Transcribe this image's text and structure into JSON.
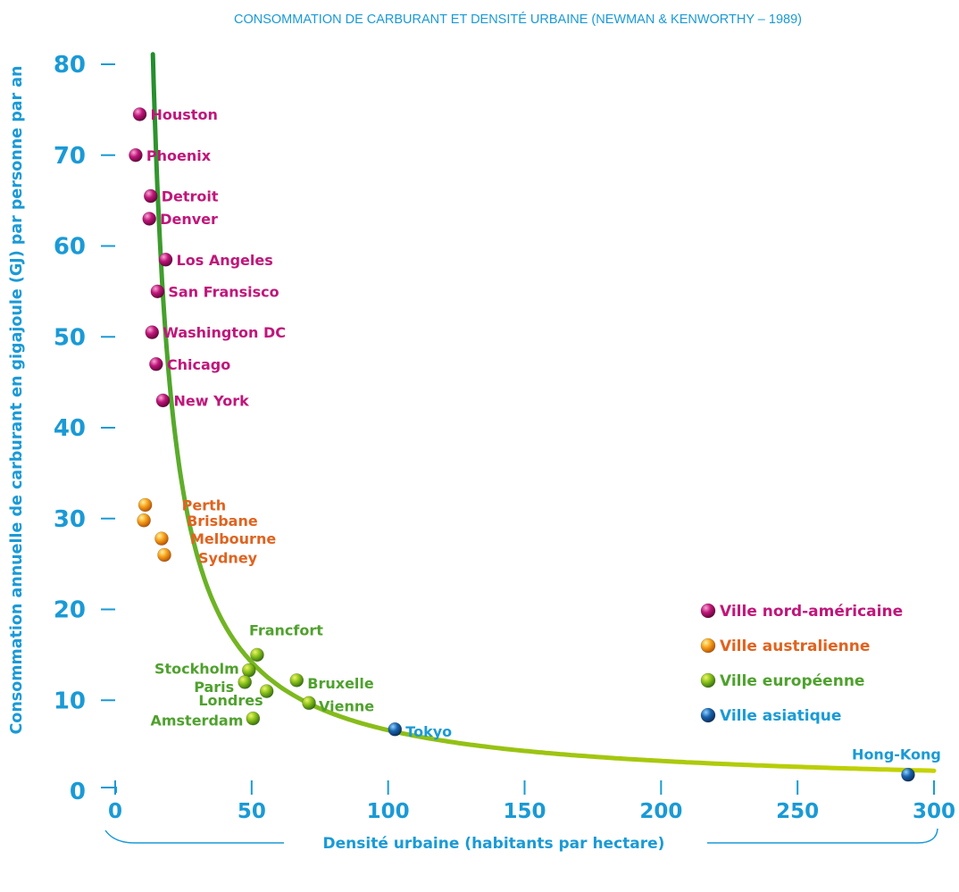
{
  "chart_data": {
    "type": "scatter",
    "title": "CONSOMMATION DE CARBURANT ET DENSITÉ URBAINE (NEWMAN & KENWORTHY – 1989)",
    "xlabel": "Densité urbaine (habitants par hectare)",
    "ylabel": "Consommation annuelle de carburant en gigajoule (GJ) par personne par an",
    "xlim": [
      0,
      300
    ],
    "ylim": [
      0,
      80
    ],
    "xticks": [
      "0",
      "50",
      "100",
      "150",
      "200",
      "250",
      "300"
    ],
    "yticks": [
      "0",
      "10",
      "20",
      "30",
      "40",
      "50",
      "60",
      "70",
      "80"
    ],
    "grid": false,
    "legend": {
      "position": "right"
    },
    "series": [
      {
        "name": "Ville nord-américaine",
        "color": "#c0167a",
        "points": [
          {
            "label": "Houston",
            "x": 9,
            "y": 74.5
          },
          {
            "label": "Phoenix",
            "x": 7.5,
            "y": 70
          },
          {
            "label": "Detroit",
            "x": 13,
            "y": 65.5
          },
          {
            "label": "Denver",
            "x": 12.5,
            "y": 63
          },
          {
            "label": "Los Angeles",
            "x": 18.5,
            "y": 58.5
          },
          {
            "label": "San Fransisco",
            "x": 15.5,
            "y": 55
          },
          {
            "label": "Washington DC",
            "x": 13.5,
            "y": 50.5
          },
          {
            "label": "Chicago",
            "x": 15,
            "y": 47
          },
          {
            "label": "New York",
            "x": 17.5,
            "y": 43
          }
        ]
      },
      {
        "name": "Ville australienne",
        "color": "#e0631f",
        "points": [
          {
            "label": "Perth",
            "x": 11,
            "y": 31.5
          },
          {
            "label": "Brisbane",
            "x": 10.5,
            "y": 29.8
          },
          {
            "label": "Melbourne",
            "x": 17,
            "y": 27.8
          },
          {
            "label": "Sydney",
            "x": 18,
            "y": 26
          }
        ]
      },
      {
        "name": "Ville européenne",
        "color": "#4fa12e",
        "points": [
          {
            "label": "Francfort",
            "x": 52,
            "y": 15
          },
          {
            "label": "Stockholm",
            "x": 49,
            "y": 13.3
          },
          {
            "label": "Paris",
            "x": 47.5,
            "y": 12
          },
          {
            "label": "Londres",
            "x": 55.5,
            "y": 11
          },
          {
            "label": "Bruxelle",
            "x": 66.5,
            "y": 12.2
          },
          {
            "label": "Vienne",
            "x": 71,
            "y": 9.7
          },
          {
            "label": "Amsterdam",
            "x": 50.5,
            "y": 8
          }
        ]
      },
      {
        "name": "Ville asiatique",
        "color": "#1a9ad6",
        "points": [
          {
            "label": "Tokyo",
            "x": 102.5,
            "y": 6.8
          },
          {
            "label": "Hong-Kong",
            "x": 290.5,
            "y": 1.8
          }
        ]
      }
    ]
  }
}
